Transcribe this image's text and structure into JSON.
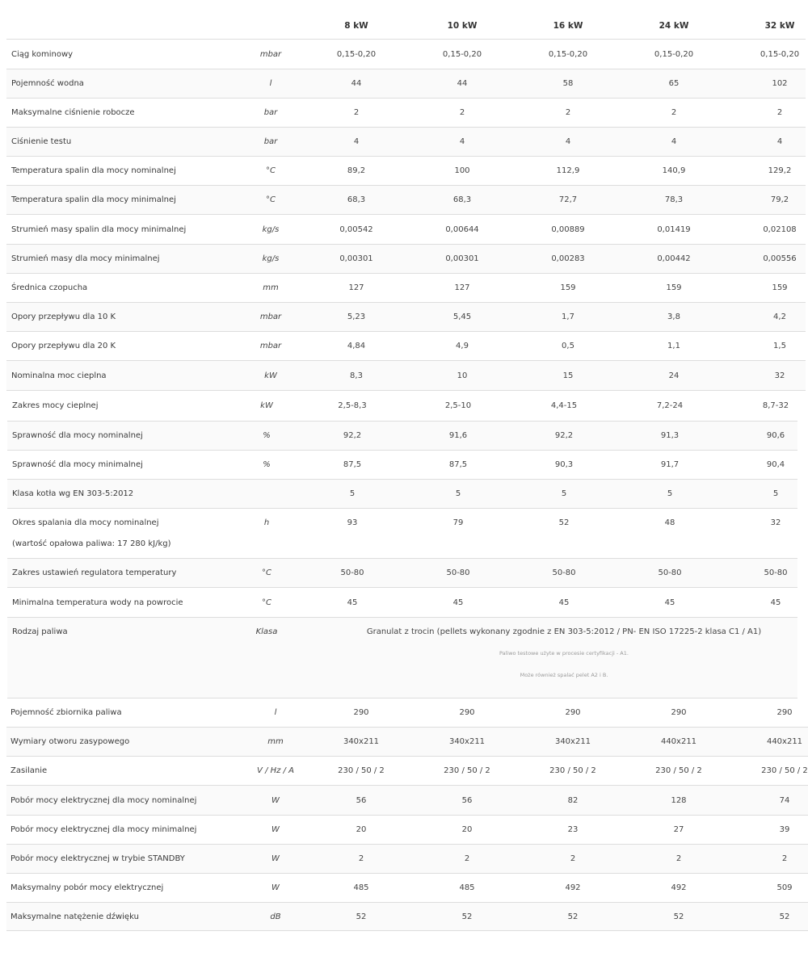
{
  "header": [
    "8 kW",
    "10 kW",
    "16 kW",
    "24 kW",
    "32 kW"
  ],
  "rows": [
    {
      "label": "Ciąg kominowy",
      "unit": "mbar",
      "values": [
        "0,15-0,20",
        "0,15-0,20",
        "0,15-0,20",
        "0,15-0,20",
        "0,15-0,20"
      ]
    },
    {
      "label": "Pojemność wodna",
      "unit": "l",
      "values": [
        "44",
        "44",
        "58",
        "65",
        "102"
      ]
    },
    {
      "label": "Maksymalne ciśnienie robocze",
      "unit": "bar",
      "values": [
        "2",
        "2",
        "2",
        "2",
        "2"
      ]
    },
    {
      "label": "Ciśnienie testu",
      "unit": "bar",
      "values": [
        "4",
        "4",
        "4",
        "4",
        "4"
      ]
    },
    {
      "label": "Temperatura spalin dla mocy nominalnej",
      "unit": "°C",
      "values": [
        "89,2",
        "100",
        "112,9",
        "140,9",
        "129,2"
      ]
    },
    {
      "label": "Temperatura spalin dla mocy minimalnej",
      "unit": "°C",
      "values": [
        "68,3",
        "68,3",
        "72,7",
        "78,3",
        "79,2"
      ]
    },
    {
      "label": "Strumień masy spalin dla mocy minimalnej",
      "unit": "kg/s",
      "values": [
        "0,00542",
        "0,00644",
        "0,00889",
        "0,01419",
        "0,02108"
      ]
    },
    {
      "label": "Strumień masy dla mocy minimalnej",
      "unit": "kg/s",
      "values": [
        "0,00301",
        "0,00301",
        "0,00283",
        "0,00442",
        "0,00556"
      ]
    },
    {
      "label": "Średnica czopucha",
      "unit": "mm",
      "values": [
        "127",
        "127",
        "159",
        "159",
        "159"
      ]
    },
    {
      "label": "Opory przepływu dla 10 K",
      "unit": "mbar",
      "values": [
        "5,23",
        "5,45",
        "1,7",
        "3,8",
        "4,2"
      ]
    },
    {
      "label": "Opory przepływu dla 20 K",
      "unit": "mbar",
      "values": [
        "4,84",
        "4,9",
        "0,5",
        "1,1",
        "1,5"
      ]
    },
    {
      "label": "Nominalna moc cieplna",
      "unit": "kW",
      "values": [
        "8,3",
        "10",
        "15",
        "24",
        "32"
      ]
    },
    {
      "label": "Zakres mocy cieplnej",
      "unit": "kW",
      "values": [
        "2,5-8,3",
        "2,5-10",
        "4,4-15",
        "7,2-24",
        "8,7-32"
      ]
    },
    {
      "label": "Sprawność dla mocy nominalnej",
      "unit": "%",
      "values": [
        "92,2",
        "91,6",
        "92,2",
        "91,3",
        "90,6"
      ]
    },
    {
      "label": "Sprawność dla mocy minimalnej",
      "unit": "%",
      "values": [
        "87,5",
        "87,5",
        "90,3",
        "91,7",
        "90,4"
      ]
    },
    {
      "label": "Klasa kotła wg EN 303-5:2012",
      "unit": "",
      "values": [
        "5",
        "5",
        "5",
        "5",
        "5"
      ]
    },
    {
      "label": "Okres spalania dla mocy nominalnej",
      "label2": "(wartość opałowa paliwa: 17 280 kJ/kg)",
      "unit": "h",
      "values": [
        "93",
        "79",
        "52",
        "48",
        "32"
      ]
    },
    {
      "label": "Zakres ustawień regulatora temperatury",
      "unit": "°C",
      "values": [
        "50-80",
        "50-80",
        "50-80",
        "50-80",
        "50-80"
      ]
    },
    {
      "label": "Minimalna temperatura wody na powrocie",
      "unit": "°C",
      "values": [
        "45",
        "45",
        "45",
        "45",
        "45"
      ]
    },
    {
      "label": "Rodzaj paliwa",
      "unit": "Klasa",
      "wide": "Granulat z trocin (pellets wykonany zgodnie z EN 303-5:2012 / PN- EN ISO 17225-2 klasa C1 / A1)",
      "notes": [
        "Paliwo testowe użyte w procesie certyfikacji - A1.",
        "Może również spalać pelet A2 i B."
      ]
    },
    {
      "label": "Pojemność zbiornika paliwa",
      "unit": "l",
      "values": [
        "290",
        "290",
        "290",
        "290",
        "290"
      ]
    },
    {
      "label": "Wymiary otworu zasypowego",
      "unit": "mm",
      "values": [
        "340x211",
        "340x211",
        "340x211",
        "440x211",
        "440x211"
      ]
    },
    {
      "label": "Zasilanie",
      "unit": "V / Hz / A",
      "values": [
        "230 / 50 / 2",
        "230 / 50 / 2",
        "230 / 50 / 2",
        "230 / 50 / 2",
        "230 / 50 / 2"
      ]
    },
    {
      "label": "Pobór mocy elektrycznej dla mocy nominalnej",
      "unit": "W",
      "values": [
        "56",
        "56",
        "82",
        "128",
        "74"
      ]
    },
    {
      "label": "Pobór mocy elektrycznej dla mocy minimalnej",
      "unit": "W",
      "values": [
        "20",
        "20",
        "23",
        "27",
        "39"
      ]
    },
    {
      "label": "Pobór mocy elektrycznej w trybie STANDBY",
      "unit": "W",
      "values": [
        "2",
        "2",
        "2",
        "2",
        "2"
      ]
    },
    {
      "label": "Maksymalny pobór mocy elektrycznej",
      "unit": "W",
      "values": [
        "485",
        "485",
        "492",
        "492",
        "509"
      ]
    },
    {
      "label": "Maksymalne natężenie dźwięku",
      "unit": "dB",
      "values": [
        "52",
        "52",
        "52",
        "52",
        "52"
      ]
    }
  ]
}
